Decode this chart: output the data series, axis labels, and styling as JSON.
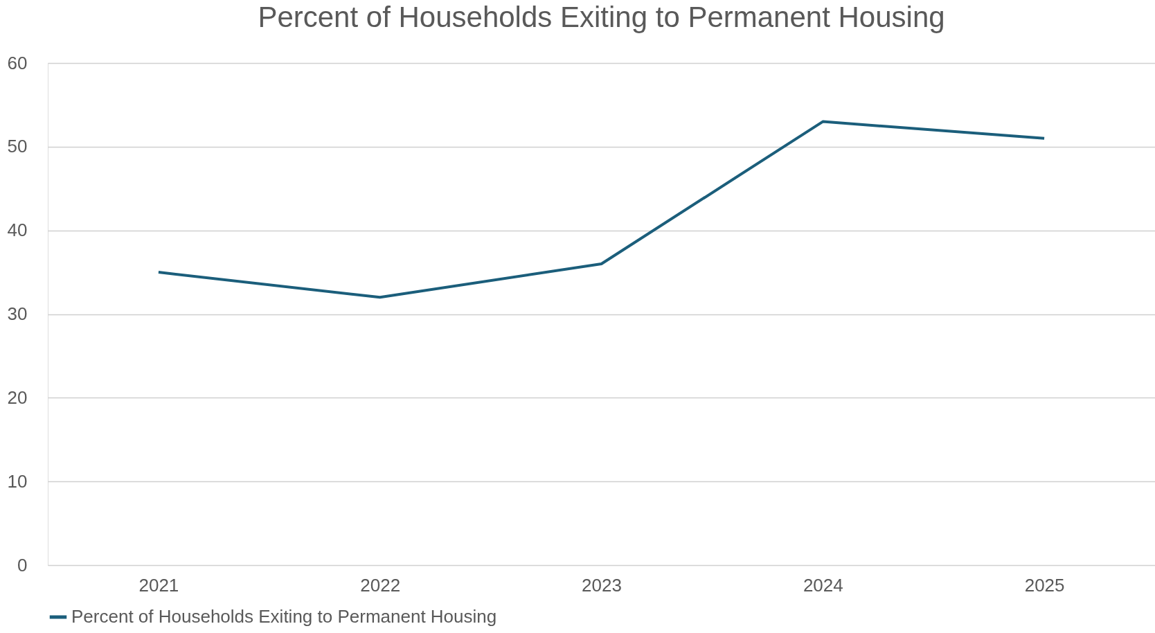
{
  "chart_data": {
    "type": "line",
    "title": "Percent of Households Exiting to Permanent Housing",
    "categories": [
      "2021",
      "2022",
      "2023",
      "2024",
      "2025"
    ],
    "series": [
      {
        "name": "Percent of Households Exiting to Permanent Housing",
        "color": "#1b5e7b",
        "values": [
          35,
          32,
          36,
          53,
          51
        ]
      }
    ],
    "ylim": [
      0,
      60
    ],
    "yticks": [
      0,
      10,
      20,
      30,
      40,
      50,
      60
    ],
    "grid": "y",
    "legend": "bottom",
    "marker": "none",
    "line_style": "solid"
  }
}
